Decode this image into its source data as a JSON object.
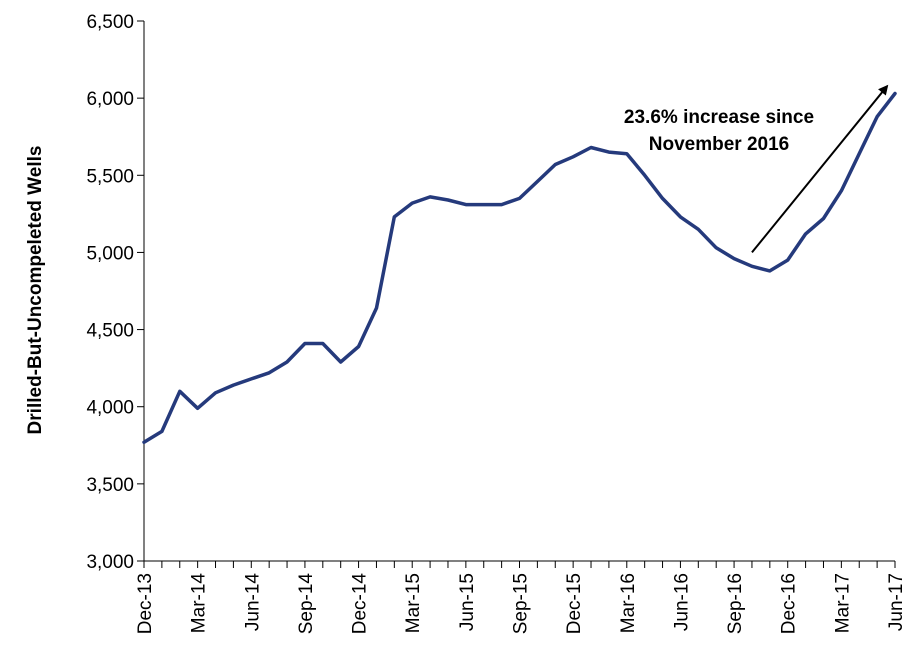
{
  "chart_data": {
    "type": "line",
    "title": "",
    "xlabel": "",
    "ylabel": "Drilled-But-Uncompeleted Wells",
    "ylim": [
      3000,
      6500
    ],
    "yticks": [
      "3,000",
      "3,500",
      "4,000",
      "4,500",
      "5,000",
      "5,500",
      "6,000",
      "6,500"
    ],
    "ytick_values": [
      3000,
      3500,
      4000,
      4500,
      5000,
      5500,
      6000,
      6500
    ],
    "xtick_labels": [
      "Dec-13",
      "Mar-14",
      "Jun-14",
      "Sep-14",
      "Dec-14",
      "Mar-15",
      "Jun-15",
      "Sep-15",
      "Dec-15",
      "Mar-16",
      "Jun-16",
      "Sep-16",
      "Dec-16",
      "Mar-17",
      "Jun-17"
    ],
    "grid": false,
    "line_color": "#253a7c",
    "x": [
      "Dec-13",
      "Jan-14",
      "Feb-14",
      "Mar-14",
      "Apr-14",
      "May-14",
      "Jun-14",
      "Jul-14",
      "Aug-14",
      "Sep-14",
      "Oct-14",
      "Nov-14",
      "Dec-14",
      "Jan-15",
      "Feb-15",
      "Mar-15",
      "Apr-15",
      "May-15",
      "Jun-15",
      "Jul-15",
      "Aug-15",
      "Sep-15",
      "Oct-15",
      "Nov-15",
      "Dec-15",
      "Jan-16",
      "Feb-16",
      "Mar-16",
      "Apr-16",
      "May-16",
      "Jun-16",
      "Jul-16",
      "Aug-16",
      "Sep-16",
      "Oct-16",
      "Nov-16",
      "Dec-16",
      "Jan-17",
      "Feb-17",
      "Mar-17",
      "Apr-17",
      "May-17",
      "Jun-17"
    ],
    "series": [
      {
        "values": [
          3770,
          3840,
          4100,
          3990,
          4090,
          4140,
          4180,
          4220,
          4290,
          4410,
          4410,
          4290,
          4390,
          4640,
          5230,
          5320,
          5360,
          5340,
          5310,
          5310,
          5310,
          5350,
          5460,
          5570,
          5620,
          5680,
          5650,
          5640,
          5500,
          5350,
          5230,
          5150,
          5030,
          4960,
          4910,
          4880,
          4950,
          5120,
          5220,
          5400,
          5640,
          5880,
          6030
        ]
      }
    ],
    "annotation": {
      "line1": "23.6% increase since",
      "line2": "November 2016",
      "arrow_from": [
        "Oct-16",
        5000
      ],
      "arrow_to": [
        "Jun-17",
        6090
      ]
    }
  }
}
